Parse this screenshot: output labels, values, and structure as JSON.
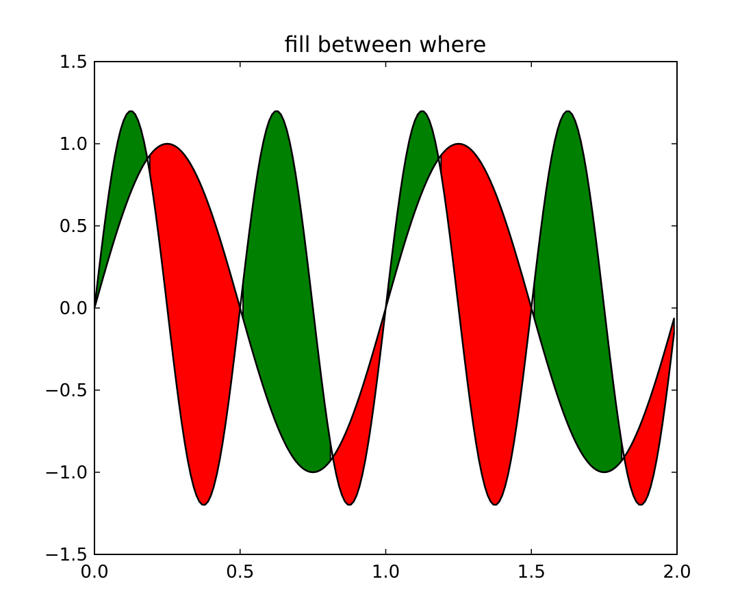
{
  "chart_data": {
    "type": "area",
    "title": "fill between where",
    "xlabel": "",
    "ylabel": "",
    "xlim": [
      0.0,
      2.0
    ],
    "ylim": [
      -1.5,
      1.5
    ],
    "x_ticks": [
      0.0,
      0.5,
      1.0,
      1.5,
      2.0
    ],
    "x_tick_labels": [
      "0.0",
      "0.5",
      "1.0",
      "1.5",
      "2.0"
    ],
    "y_ticks": [
      -1.5,
      -1.0,
      -0.5,
      0.0,
      0.5,
      1.0,
      1.5
    ],
    "y_tick_labels": [
      "−1.5",
      "−1.0",
      "−0.5",
      "0.0",
      "0.5",
      "1.0",
      "1.5"
    ],
    "grid": false,
    "series": [
      {
        "function": "sin(2*pi*x)",
        "x_start": 0.0,
        "x_end": 2.0,
        "x_step": 0.01,
        "color": "#000000"
      },
      {
        "function": "1.2*sin(4*pi*x)",
        "x_start": 0.0,
        "x_end": 2.0,
        "x_step": 0.01,
        "color": "#000000"
      }
    ],
    "fills": [
      {
        "where": "y2 >= y1",
        "color": "#008000"
      },
      {
        "where": "y2 <= y1",
        "color": "#ff0000"
      }
    ]
  }
}
